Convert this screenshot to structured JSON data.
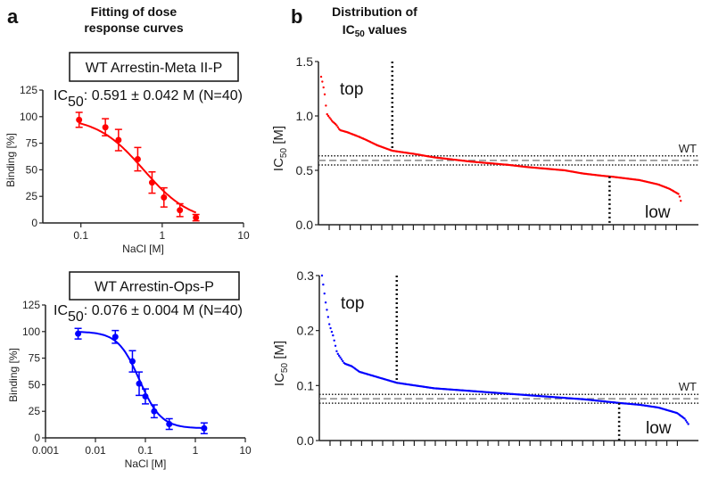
{
  "panels": {
    "a_label": "a",
    "a_title_1": "Fitting of dose",
    "a_title_2": "response curves",
    "b_label": "b",
    "b_title_1": "Distribution of",
    "b_title_2": "IC",
    "b_title_sub": "50",
    "b_title_3": " values"
  },
  "colors": {
    "red": "#ff0000",
    "blue": "#0000ff",
    "axis": "#222222",
    "wt": "#888888"
  },
  "chart_data": [
    {
      "type": "scatter",
      "name": "WT Arrestin-Meta II-P",
      "title": "WT Arrestin-Meta II-P",
      "annotation": {
        "pre": "IC",
        "sub": "50",
        "post": ": 0.591 ± 0.042 M (N=40)"
      },
      "xlabel": "NaCl [M]",
      "ylabel": "Binding [%]",
      "xscale": "log",
      "xlim": [
        0.034,
        10
      ],
      "ylim": [
        0,
        125
      ],
      "xticks": [
        0.1,
        1,
        10
      ],
      "xtick_labels": [
        "0.1",
        "1",
        "10"
      ],
      "yticks": [
        0,
        25,
        50,
        75,
        100,
        125
      ],
      "ytick_labels": [
        "0",
        "25",
        "50",
        "75",
        "100",
        "125"
      ],
      "color": "#ff0000",
      "x": [
        0.095,
        0.2,
        0.29,
        0.5,
        0.75,
        1.05,
        1.65,
        2.6
      ],
      "y": [
        97,
        90,
        78,
        60,
        38,
        24,
        12,
        5
      ],
      "err": [
        7,
        8,
        10,
        11,
        10,
        9,
        6,
        3
      ],
      "fit": {
        "top": 100,
        "bottom": 0,
        "ic50": 0.591,
        "hill": 1.5,
        "range": [
          0.095,
          2.6
        ]
      }
    },
    {
      "type": "scatter",
      "name": "WT Arrestin-Ops-P",
      "title": "WT Arrestin-Ops-P",
      "annotation": {
        "pre": "IC",
        "sub": "50",
        "post": ": 0.076 ± 0.004 M (N=40)"
      },
      "xlabel": "NaCl [M]",
      "ylabel": "Binding [%]",
      "xscale": "log",
      "xlim": [
        0.001,
        10
      ],
      "ylim": [
        0,
        125
      ],
      "xticks": [
        0.001,
        0.01,
        0.1,
        1,
        10
      ],
      "xtick_labels": [
        "0.001",
        "0.01",
        "0.1",
        "1",
        "10"
      ],
      "yticks": [
        0,
        25,
        50,
        75,
        100,
        125
      ],
      "ytick_labels": [
        "0",
        "25",
        "50",
        "75",
        "100",
        "125"
      ],
      "color": "#0000ff",
      "x": [
        0.0045,
        0.025,
        0.055,
        0.075,
        0.1,
        0.15,
        0.3,
        1.5
      ],
      "y": [
        98,
        95,
        72,
        51,
        39,
        25,
        13,
        9
      ],
      "err": [
        5,
        6,
        10,
        11,
        7,
        6,
        5,
        5
      ],
      "fit": {
        "top": 100,
        "bottom": 9,
        "ic50": 0.076,
        "hill": 2,
        "range": [
          0.0045,
          1.5
        ]
      }
    },
    {
      "type": "scatter",
      "name": "IC50 distribution Meta II-P",
      "ylabel_pre": "IC",
      "ylabel_sub": "50",
      "ylabel_post": " [M]",
      "ylim": [
        0,
        1.5
      ],
      "yticks": [
        0,
        0.5,
        1.0,
        1.5
      ],
      "ytick_labels": [
        "0.0",
        "0.5",
        "1.0",
        "1.5"
      ],
      "color": "#ff0000",
      "wt_label": "WT",
      "wt": 0.591,
      "wt_band": [
        0.549,
        0.633
      ],
      "top_label": "top",
      "low_label": "low",
      "top_cut_rank": 0.19,
      "low_cut_rank": 0.77,
      "n_ticks": 34,
      "rank": [
        0,
        0.005,
        0.01,
        0.015,
        0.03,
        0.04,
        0.05,
        0.07,
        0.1,
        0.12,
        0.15,
        0.19,
        0.25,
        0.3,
        0.35,
        0.4,
        0.45,
        0.5,
        0.55,
        0.6,
        0.65,
        0.7,
        0.75,
        0.78,
        0.85,
        0.9,
        0.93,
        0.955,
        0.96
      ],
      "values": [
        1.36,
        1.29,
        1.19,
        1.02,
        0.95,
        0.92,
        0.87,
        0.85,
        0.81,
        0.78,
        0.73,
        0.68,
        0.65,
        0.62,
        0.6,
        0.58,
        0.565,
        0.55,
        0.53,
        0.515,
        0.5,
        0.47,
        0.45,
        0.44,
        0.41,
        0.37,
        0.33,
        0.28,
        0.22
      ]
    },
    {
      "type": "scatter",
      "name": "IC50 distribution Ops-P",
      "ylabel_pre": "IC",
      "ylabel_sub": "50",
      "ylabel_post": " [M]",
      "ylim": [
        0,
        0.3
      ],
      "yticks": [
        0,
        0.1,
        0.2,
        0.3
      ],
      "ytick_labels": [
        "0.0",
        "0.1",
        "0.2",
        "0.3"
      ],
      "color": "#0000ff",
      "wt_label": "WT",
      "wt": 0.076,
      "wt_band": [
        0.068,
        0.084
      ],
      "top_label": "top",
      "low_label": "low",
      "top_cut_rank": 0.2,
      "low_cut_rank": 0.795,
      "n_ticks": 34,
      "rank": [
        0,
        0.01,
        0.02,
        0.03,
        0.04,
        0.05,
        0.06,
        0.08,
        0.1,
        0.15,
        0.2,
        0.25,
        0.3,
        0.4,
        0.5,
        0.6,
        0.7,
        0.8,
        0.85,
        0.9,
        0.95,
        0.97,
        0.98
      ],
      "values": [
        0.3,
        0.25,
        0.21,
        0.19,
        0.16,
        0.15,
        0.14,
        0.135,
        0.125,
        0.115,
        0.105,
        0.1,
        0.095,
        0.09,
        0.085,
        0.08,
        0.075,
        0.068,
        0.065,
        0.06,
        0.05,
        0.04,
        0.03
      ]
    }
  ]
}
